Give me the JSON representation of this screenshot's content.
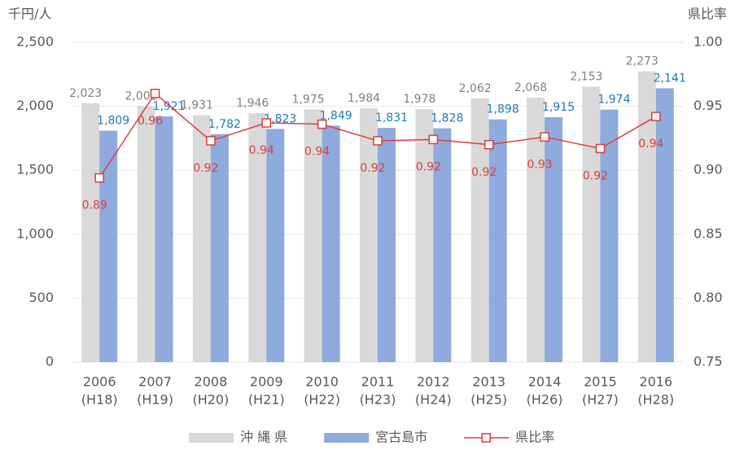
{
  "chart_data": {
    "type": "bar",
    "ylabel": "千円/人",
    "y2label": "県比率",
    "categories": [
      [
        "2006",
        "(H18)"
      ],
      [
        "2007",
        "(H19)"
      ],
      [
        "2008",
        "(H20)"
      ],
      [
        "2009",
        "(H21)"
      ],
      [
        "2010",
        "(H22)"
      ],
      [
        "2011",
        "(H23)"
      ],
      [
        "2012",
        "(H24)"
      ],
      [
        "2013",
        "(H25)"
      ],
      [
        "2014",
        "(H26)"
      ],
      [
        "2015",
        "(H27)"
      ],
      [
        "2016",
        "(H28)"
      ]
    ],
    "series": [
      {
        "name": "沖 縄 県",
        "color": "#d9d9d9",
        "label_color": "#808080",
        "values": [
          2023,
          2002,
          1931,
          1946,
          1975,
          1984,
          1978,
          2062,
          2068,
          2153,
          2273
        ],
        "value_labels": [
          "2,023",
          "2,002",
          "1,931",
          "1,946",
          "1,975",
          "1,984",
          "1,978",
          "2,062",
          "2,068",
          "2,153",
          "2,273"
        ]
      },
      {
        "name": "宮古島市",
        "color": "#8faadc",
        "label_color": "#1f7ab8",
        "values": [
          1809,
          1921,
          1782,
          1823,
          1849,
          1831,
          1828,
          1898,
          1915,
          1974,
          2141
        ],
        "value_labels": [
          "1,809",
          "1,921",
          "1,782",
          "1,823",
          "1,849",
          "1,831",
          "1,828",
          "1,898",
          "1,915",
          "1,974",
          "2,141"
        ]
      },
      {
        "name": "県比率",
        "type": "line",
        "axis": "y2",
        "color": "#e03c3c",
        "label_color": "#e03c3c",
        "values": [
          0.894,
          0.96,
          0.923,
          0.937,
          0.936,
          0.923,
          0.924,
          0.92,
          0.926,
          0.917,
          0.942
        ],
        "value_labels": [
          "0.89",
          "0.96",
          "0.92",
          "0.94",
          "0.94",
          "0.92",
          "0.92",
          "0.92",
          "0.93",
          "0.92",
          "0.94"
        ]
      }
    ],
    "ylim": [
      0,
      2500
    ],
    "yticks": [
      0,
      500,
      {
        "value": 1000,
        "label": "1,000"
      },
      {
        "value": 1500,
        "label": "1,500"
      },
      {
        "value": 2000,
        "label": "2,000"
      },
      {
        "value": 2500,
        "label": "2,500"
      }
    ],
    "y2lim": [
      0.75,
      1.0
    ],
    "y2ticks": [
      0.75,
      {
        "value": 0.8,
        "label": "0.80"
      },
      0.85,
      {
        "value": 0.9,
        "label": "0.90"
      },
      0.95,
      {
        "value": 1.0,
        "label": "1.00"
      }
    ],
    "grid": true,
    "legend": "bottom"
  }
}
